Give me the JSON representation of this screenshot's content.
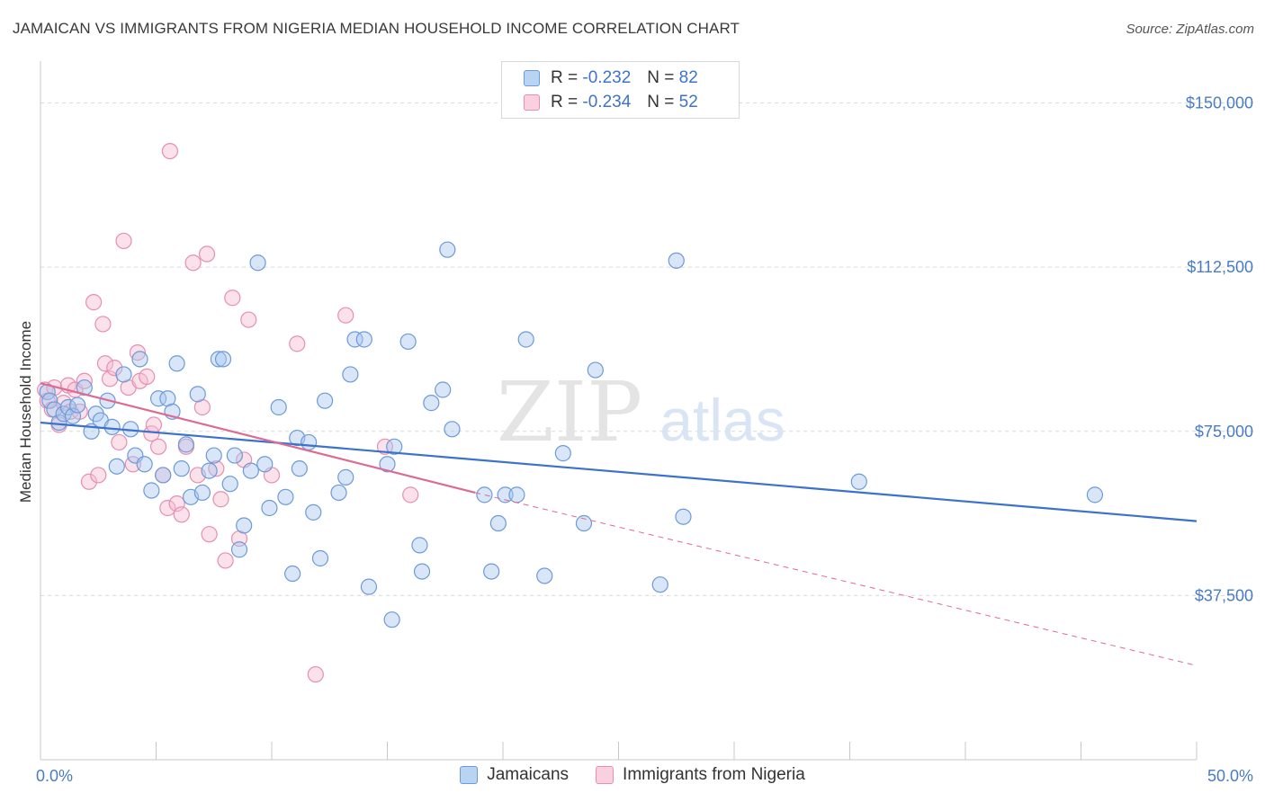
{
  "title": "JAMAICAN VS IMMIGRANTS FROM NIGERIA MEDIAN HOUSEHOLD INCOME CORRELATION CHART",
  "source": "Source: ZipAtlas.com",
  "watermark": {
    "zip": "ZIP",
    "atlas": "atlas"
  },
  "colors": {
    "jamaican_fill": "#a9c7ef",
    "jamaican_stroke": "#6d9ad8",
    "jamaican_line": "#3a72cc",
    "nigeria_fill": "#f6bcd0",
    "nigeria_stroke": "#e68fb0",
    "nigeria_line": "#de6a94",
    "tick_text": "#4a7cc4",
    "grid": "#d9d9d9"
  },
  "legend": {
    "rows": [
      {
        "r_label": "R =",
        "r_value": "-0.232",
        "n_label": "N =",
        "n_value": "82"
      },
      {
        "r_label": "R =",
        "r_value": "-0.234",
        "n_label": "N =",
        "n_value": "52"
      }
    ]
  },
  "bottom_legend": {
    "jamaicans": "Jamaicans",
    "nigeria": "Immigrants from Nigeria"
  },
  "chart_data": {
    "type": "scatter",
    "ylabel": "Median Household Income",
    "xlim": [
      0,
      50
    ],
    "ylim": [
      0,
      157500
    ],
    "x_tick_labels": [
      "0.0%",
      "50.0%"
    ],
    "y_ticks": [
      {
        "value": 150000,
        "label": "$150,000"
      },
      {
        "value": 112500,
        "label": "$112,500"
      },
      {
        "value": 75000,
        "label": "$75,000"
      },
      {
        "value": 37500,
        "label": "$37,500"
      }
    ],
    "grid": "horizontal dashed",
    "series": [
      {
        "name": "Jamaicans",
        "trend": {
          "x": [
            0,
            50
          ],
          "y": [
            77000,
            54500
          ]
        },
        "points": [
          [
            0.3,
            84000
          ],
          [
            0.4,
            82000
          ],
          [
            0.6,
            80000
          ],
          [
            0.8,
            77000
          ],
          [
            1.0,
            79000
          ],
          [
            1.2,
            80500
          ],
          [
            1.4,
            78500
          ],
          [
            1.6,
            81000
          ],
          [
            1.9,
            85000
          ],
          [
            2.2,
            75000
          ],
          [
            2.4,
            79000
          ],
          [
            2.6,
            77500
          ],
          [
            2.9,
            82000
          ],
          [
            3.1,
            76000
          ],
          [
            3.3,
            67000
          ],
          [
            3.6,
            88000
          ],
          [
            3.9,
            75500
          ],
          [
            4.1,
            69500
          ],
          [
            4.3,
            91500
          ],
          [
            4.5,
            67500
          ],
          [
            4.8,
            61500
          ],
          [
            5.1,
            82500
          ],
          [
            5.3,
            65000
          ],
          [
            5.5,
            82500
          ],
          [
            5.7,
            79500
          ],
          [
            5.9,
            90500
          ],
          [
            6.1,
            66500
          ],
          [
            6.3,
            72000
          ],
          [
            6.5,
            60000
          ],
          [
            6.8,
            83500
          ],
          [
            7.0,
            61000
          ],
          [
            7.3,
            66000
          ],
          [
            7.5,
            69500
          ],
          [
            7.7,
            91500
          ],
          [
            7.9,
            91500
          ],
          [
            8.2,
            63000
          ],
          [
            8.4,
            69500
          ],
          [
            8.6,
            48000
          ],
          [
            8.8,
            53500
          ],
          [
            9.1,
            66000
          ],
          [
            9.4,
            113500
          ],
          [
            9.7,
            67500
          ],
          [
            9.9,
            57500
          ],
          [
            10.3,
            80500
          ],
          [
            10.6,
            60000
          ],
          [
            10.9,
            42500
          ],
          [
            11.1,
            73500
          ],
          [
            11.2,
            66500
          ],
          [
            11.6,
            72500
          ],
          [
            11.8,
            56500
          ],
          [
            12.1,
            46000
          ],
          [
            12.3,
            82000
          ],
          [
            12.9,
            61000
          ],
          [
            13.2,
            64500
          ],
          [
            13.4,
            88000
          ],
          [
            13.6,
            96000
          ],
          [
            14.0,
            96000
          ],
          [
            14.2,
            39500
          ],
          [
            15.0,
            67500
          ],
          [
            15.3,
            71500
          ],
          [
            15.2,
            32000
          ],
          [
            15.9,
            95500
          ],
          [
            16.4,
            49000
          ],
          [
            16.5,
            43000
          ],
          [
            16.9,
            81500
          ],
          [
            17.4,
            84500
          ],
          [
            17.6,
            116500
          ],
          [
            17.8,
            75500
          ],
          [
            19.2,
            60500
          ],
          [
            19.5,
            43000
          ],
          [
            19.8,
            54000
          ],
          [
            20.1,
            60500
          ],
          [
            20.6,
            60500
          ],
          [
            21.0,
            96000
          ],
          [
            21.8,
            42000
          ],
          [
            22.6,
            70000
          ],
          [
            23.5,
            54000
          ],
          [
            24.0,
            89000
          ],
          [
            26.8,
            40000
          ],
          [
            27.5,
            114000
          ],
          [
            27.8,
            55500
          ],
          [
            35.4,
            63500
          ],
          [
            45.6,
            60500
          ]
        ]
      },
      {
        "name": "Immigrants from Nigeria",
        "trend": {
          "x": [
            0,
            18.8
          ],
          "y": [
            86000,
            61000
          ]
        },
        "trend_extended": {
          "x": [
            18.8,
            50
          ],
          "y": [
            61000,
            21500
          ]
        },
        "points": [
          [
            0.2,
            84500
          ],
          [
            0.3,
            82000
          ],
          [
            0.5,
            80000
          ],
          [
            0.6,
            85000
          ],
          [
            0.8,
            76500
          ],
          [
            1.0,
            81500
          ],
          [
            1.2,
            85500
          ],
          [
            1.3,
            79500
          ],
          [
            1.5,
            84500
          ],
          [
            1.7,
            79500
          ],
          [
            1.9,
            86500
          ],
          [
            2.1,
            63500
          ],
          [
            2.3,
            104500
          ],
          [
            2.5,
            65000
          ],
          [
            2.7,
            99500
          ],
          [
            2.8,
            90500
          ],
          [
            3.0,
            87000
          ],
          [
            3.2,
            89500
          ],
          [
            3.4,
            72500
          ],
          [
            3.6,
            118500
          ],
          [
            3.8,
            85000
          ],
          [
            4.0,
            67500
          ],
          [
            4.2,
            93000
          ],
          [
            4.3,
            86500
          ],
          [
            4.6,
            87500
          ],
          [
            4.8,
            74500
          ],
          [
            4.9,
            76500
          ],
          [
            5.1,
            71500
          ],
          [
            5.3,
            65000
          ],
          [
            5.5,
            57500
          ],
          [
            5.6,
            139000
          ],
          [
            5.9,
            58500
          ],
          [
            6.1,
            56000
          ],
          [
            6.3,
            71500
          ],
          [
            6.6,
            113500
          ],
          [
            6.8,
            65000
          ],
          [
            7.0,
            80500
          ],
          [
            7.2,
            115500
          ],
          [
            7.3,
            51500
          ],
          [
            7.6,
            66500
          ],
          [
            7.8,
            59500
          ],
          [
            8.0,
            45500
          ],
          [
            8.3,
            105500
          ],
          [
            8.6,
            50500
          ],
          [
            8.8,
            68500
          ],
          [
            9.0,
            100500
          ],
          [
            10.0,
            65000
          ],
          [
            11.1,
            95000
          ],
          [
            11.9,
            19500
          ],
          [
            13.2,
            101500
          ],
          [
            14.9,
            71500
          ],
          [
            16.0,
            60500
          ]
        ]
      }
    ]
  }
}
